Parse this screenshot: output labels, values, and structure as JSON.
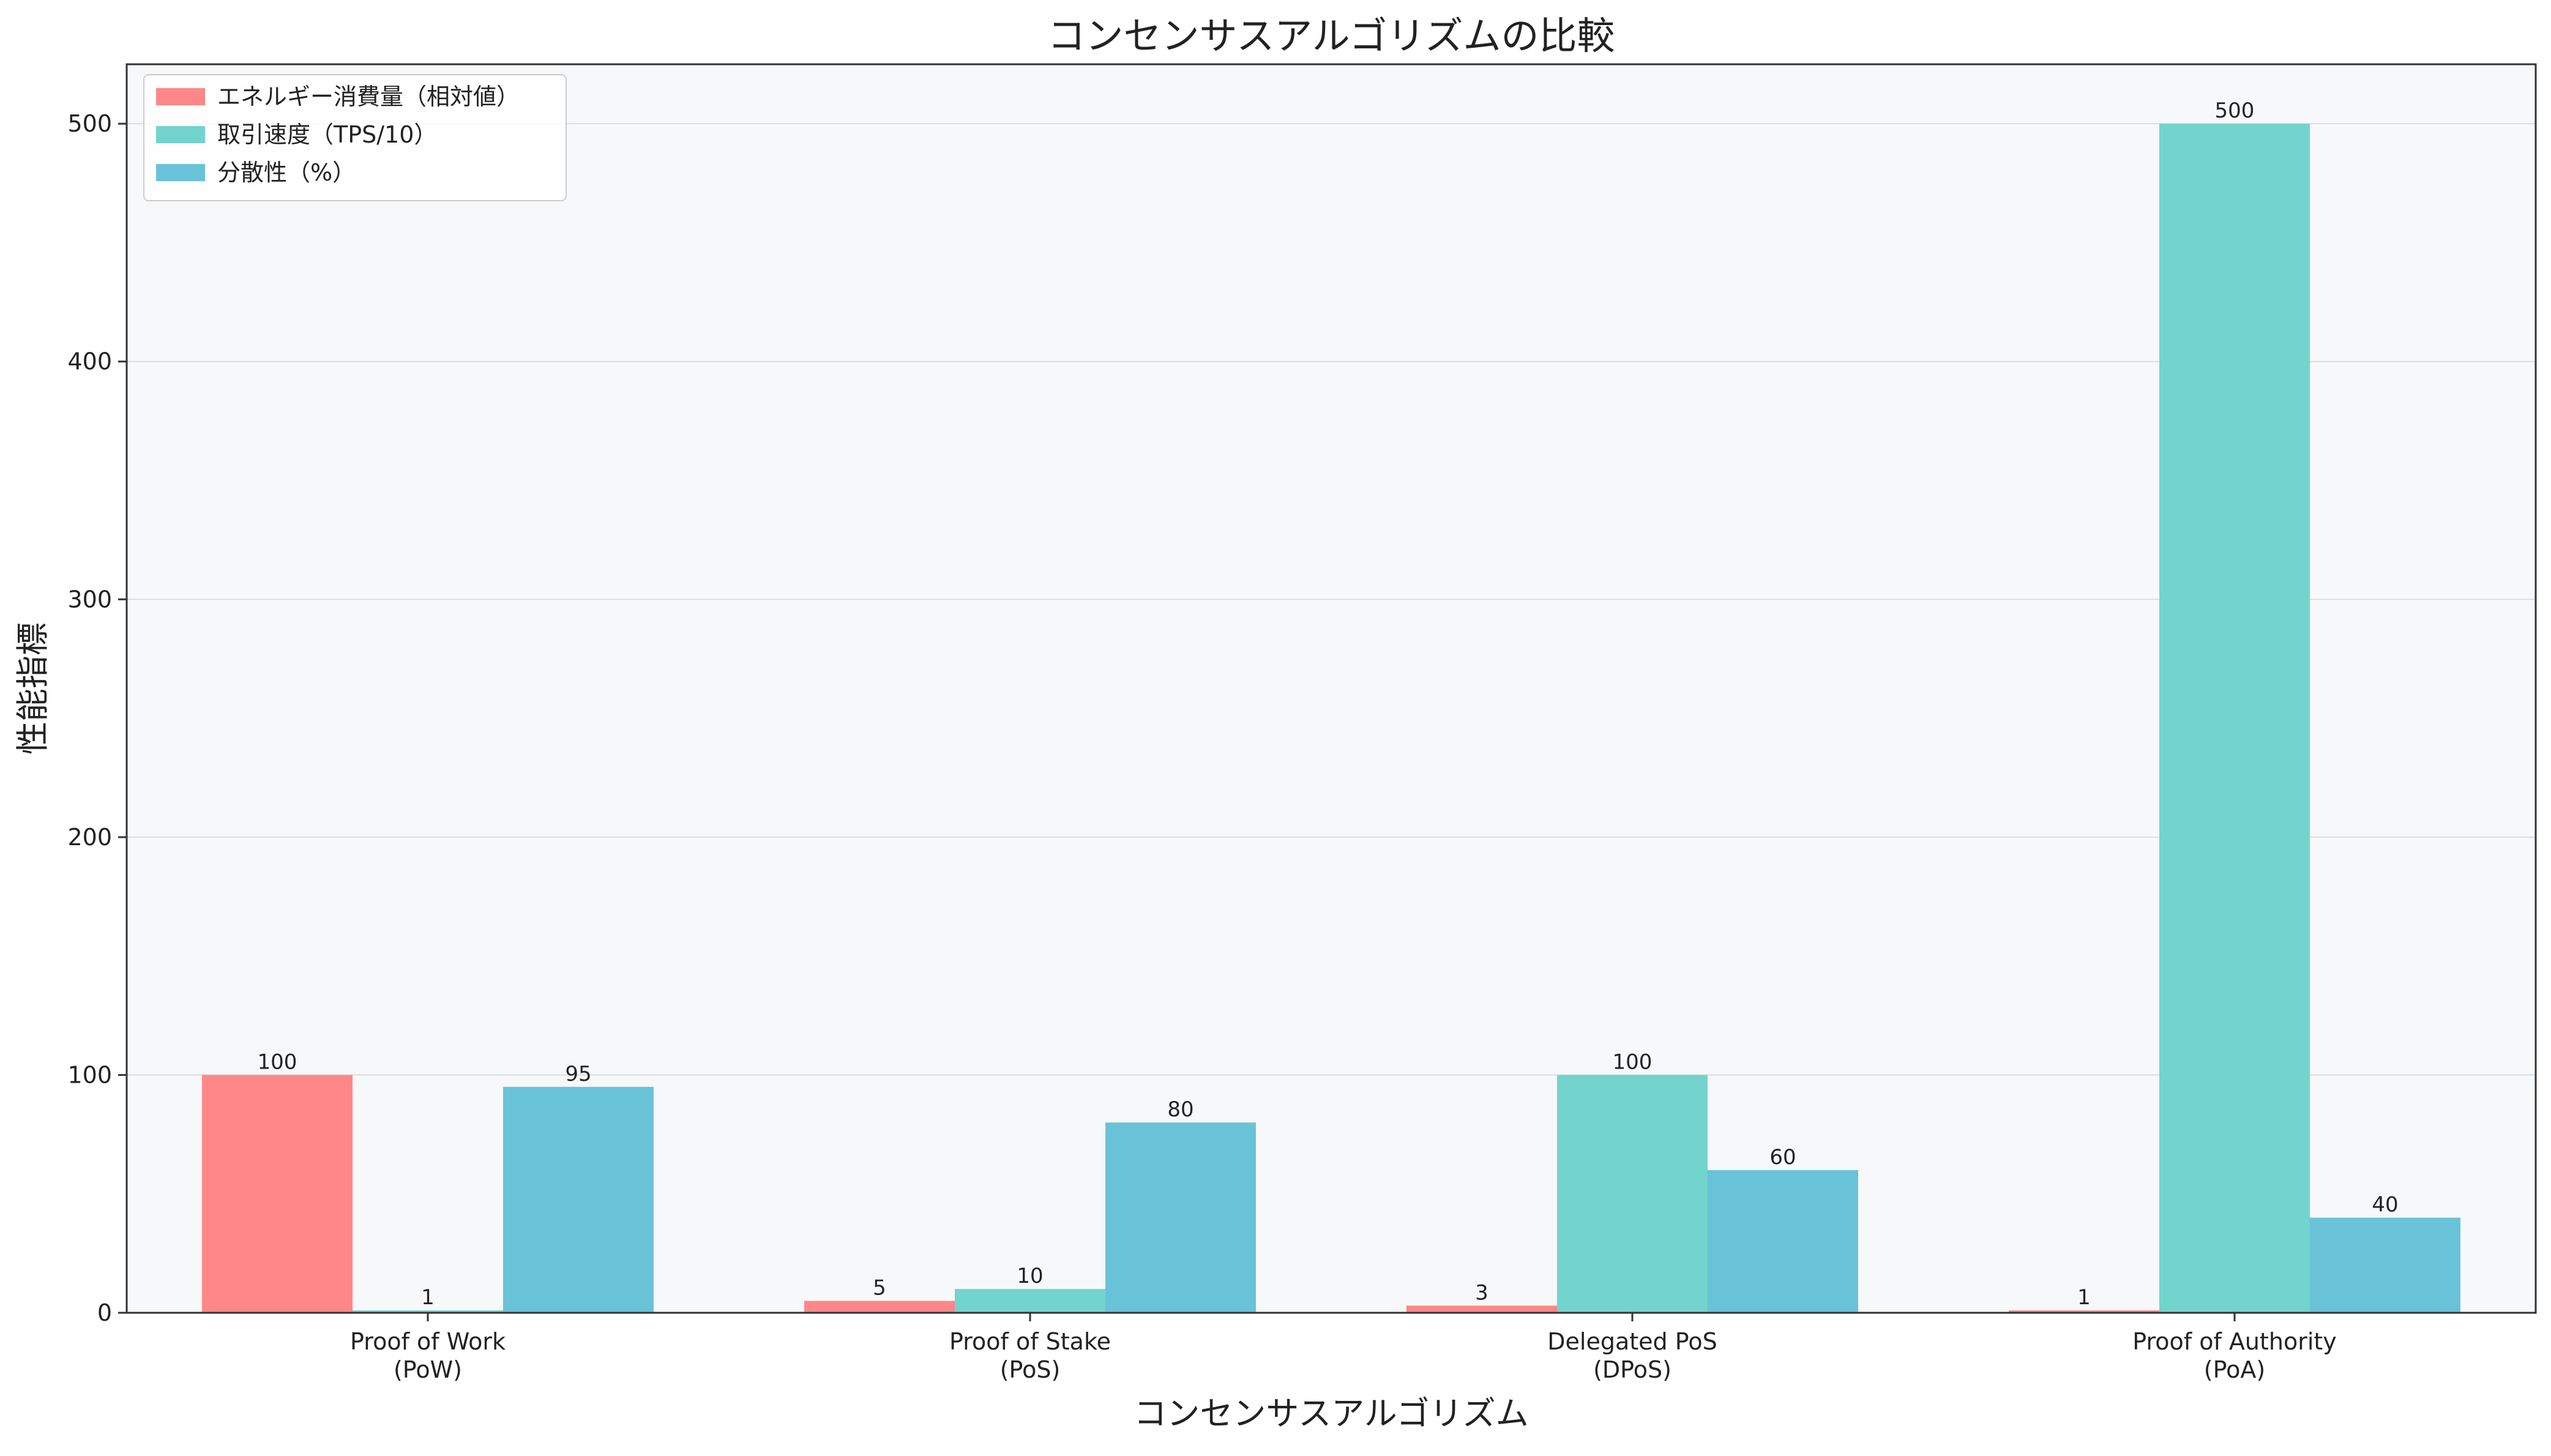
{
  "chart_data": {
    "type": "bar",
    "title": "コンセンサスアルゴリズムの比較",
    "xlabel": "コンセンサスアルゴリズム",
    "ylabel": "性能指標",
    "categories": [
      [
        "Proof of Work",
        "(PoW)"
      ],
      [
        "Proof of Stake",
        "(PoS)"
      ],
      [
        "Delegated PoS",
        "(DPoS)"
      ],
      [
        "Proof of Authority",
        "(PoA)"
      ]
    ],
    "series": [
      {
        "name": "エネルギー消費量（相対値）",
        "values": [
          100,
          5,
          3,
          1
        ],
        "color": "#FF8787"
      },
      {
        "name": "取引速度（TPS/10）",
        "values": [
          1,
          10,
          100,
          500
        ],
        "color": "#72D4CD"
      },
      {
        "name": "分散性（%）",
        "values": [
          95,
          80,
          60,
          40
        ],
        "color": "#69C3D8"
      }
    ],
    "ylim": [
      0,
      525
    ],
    "yticks": [
      0,
      100,
      200,
      300,
      400,
      500
    ],
    "grid": "y",
    "legend": "top-left",
    "plot_background": "#F7F8FA"
  }
}
